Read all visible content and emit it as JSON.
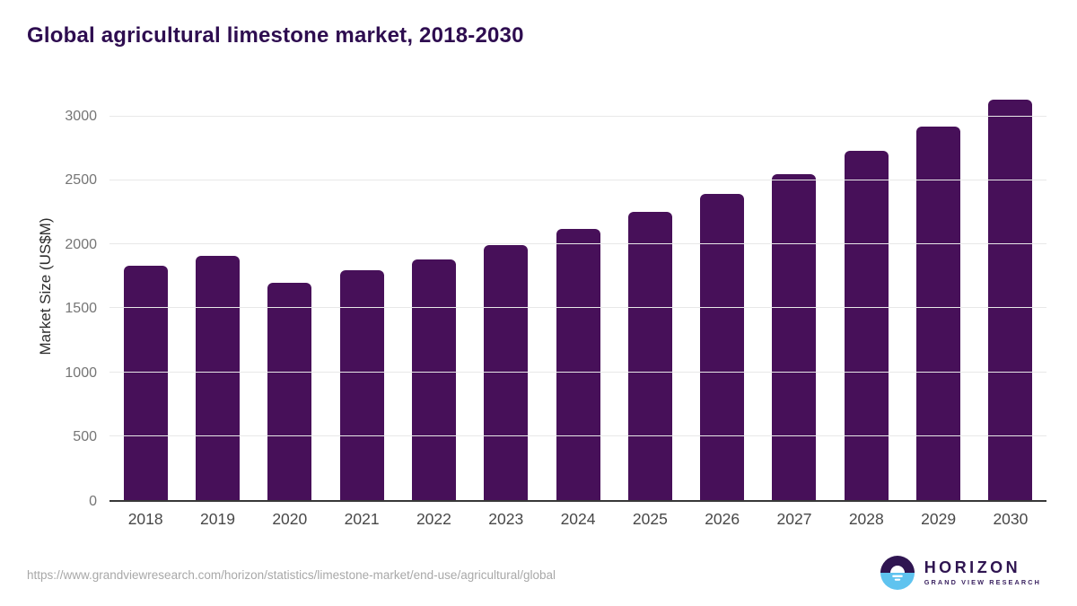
{
  "title": "Global agricultural limestone market, 2018-2030",
  "chart_data": {
    "type": "bar",
    "title": "Global agricultural limestone market, 2018-2030",
    "categories": [
      "2018",
      "2019",
      "2020",
      "2021",
      "2022",
      "2023",
      "2024",
      "2025",
      "2026",
      "2027",
      "2028",
      "2029",
      "2030"
    ],
    "values": [
      1830,
      1910,
      1700,
      1800,
      1880,
      1990,
      2120,
      2250,
      2390,
      2550,
      2730,
      2920,
      3130
    ],
    "xlabel": "",
    "ylabel": "Market Size (US$M)",
    "ylim": [
      0,
      3200
    ],
    "yticks": [
      0,
      500,
      1000,
      1500,
      2000,
      2500,
      3000
    ],
    "grid": true,
    "legend": "none",
    "bar_color": "#471059"
  },
  "footer": {
    "source_url": "https://www.grandviewresearch.com/horizon/statistics/limestone-market/end-use/agricultural/global",
    "logo": {
      "wordmark": "HORIZON",
      "subtitle": "GRAND VIEW RESEARCH"
    }
  },
  "colors": {
    "bar": "#471059",
    "title": "#2e0d50",
    "gridline": "#e8e8e8",
    "axis_line": "#383838",
    "y_tick_label": "#757575",
    "x_tick_label": "#484848",
    "url_text": "#a8a8a8",
    "logo_purple": "#2f1551",
    "logo_blue": "#5fc3ef"
  }
}
